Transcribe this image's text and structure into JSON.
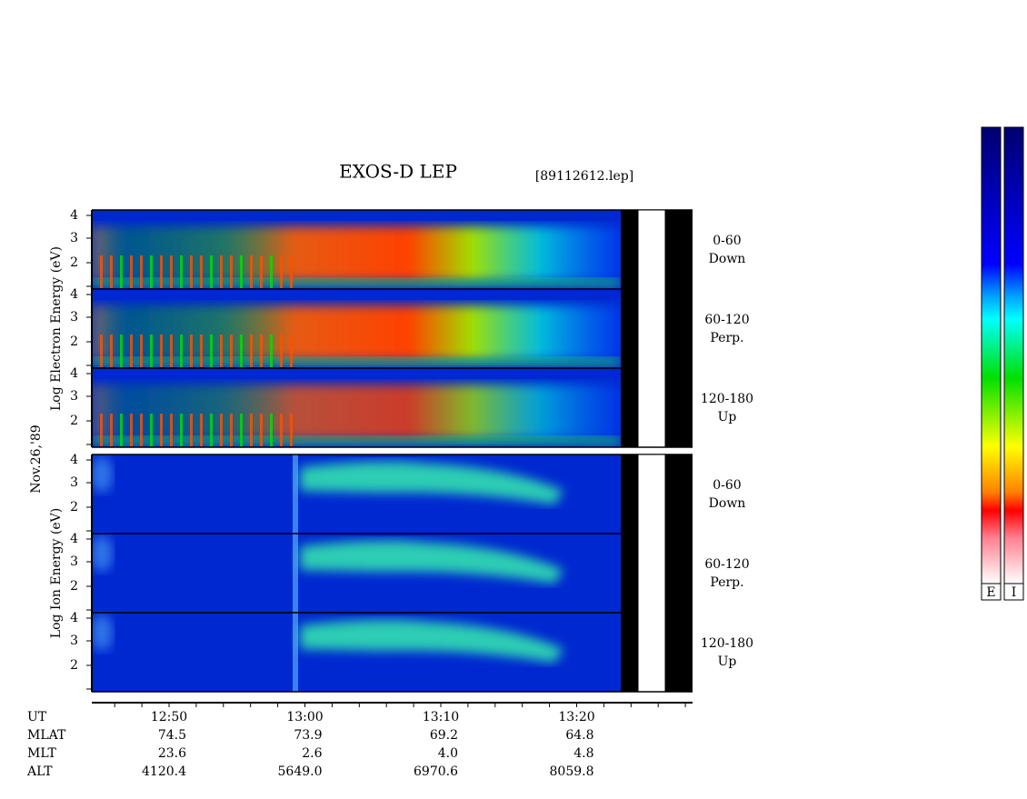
{
  "header": {
    "title": "EXOS-D LEP",
    "file": "[89112612.lep]"
  },
  "date": "Nov.26,'89",
  "groups": [
    {
      "axis_label": "Log Electron Energy (eV)",
      "panels": [
        {
          "yticks": [
            "4",
            "3",
            "2"
          ],
          "label": [
            "0-60",
            "Down"
          ]
        },
        {
          "yticks": [
            "4",
            "3",
            "2"
          ],
          "label": [
            "60-120",
            "Perp."
          ]
        },
        {
          "yticks": [
            "4",
            "3",
            "2"
          ],
          "label": [
            "120-180",
            "Up"
          ]
        }
      ]
    },
    {
      "axis_label": "Log Ion Energy (eV)",
      "panels": [
        {
          "yticks": [
            "4",
            "3",
            "2"
          ],
          "label": [
            "0-60",
            "Down"
          ]
        },
        {
          "yticks": [
            "4",
            "3",
            "2"
          ],
          "label": [
            "60-120",
            "Perp."
          ]
        },
        {
          "yticks": [
            "4",
            "3",
            "2"
          ],
          "label": [
            "120-180",
            "Up"
          ]
        }
      ]
    }
  ],
  "table": {
    "rows": [
      {
        "name": "UT",
        "values": [
          "12:50",
          "13:00",
          "13:10",
          "13:20"
        ]
      },
      {
        "name": "MLAT",
        "values": [
          "74.5",
          "73.9",
          "69.2",
          "64.8"
        ]
      },
      {
        "name": "MLT",
        "values": [
          "23.6",
          "2.6",
          "4.0",
          "4.8"
        ]
      },
      {
        "name": "ALT",
        "values": [
          "4120.4",
          "5649.0",
          "6970.6",
          "8059.8"
        ]
      }
    ]
  },
  "colorbars": [
    "E",
    "I"
  ]
}
